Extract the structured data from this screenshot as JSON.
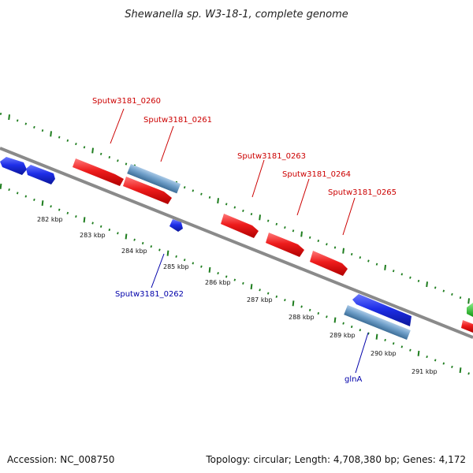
{
  "title": "Shewanella sp. W3-18-1, complete genome",
  "footer": {
    "accession": "Accession: NC_008750",
    "summary": "Topology: circular; Length: 4,708,380 bp; Genes: 4,172"
  },
  "colors": {
    "backbone": "#8a8a8a",
    "tick": "#1e7d1e",
    "forward_gene": "#ee2222",
    "reverse_gene": "#1f2fe6",
    "rna_gene": "#6f9fc9",
    "other_gene": "#22bb22",
    "forward_label": "#cc0000",
    "reverse_label": "#0000aa"
  },
  "ticks": {
    "labels": [
      "282 kbp",
      "283 kbp",
      "284 kbp",
      "285 kbp",
      "286 kbp",
      "287 kbp",
      "288 kbp",
      "289 kbp",
      "290 kbp",
      "291 kbp"
    ]
  },
  "genes": {
    "forward": [
      {
        "label": "Sputw3181_0260"
      },
      {
        "label": "Sputw3181_0261"
      },
      {
        "label": "Sputw3181_0263"
      },
      {
        "label": "Sputw3181_0264"
      },
      {
        "label": "Sputw3181_0265"
      }
    ],
    "reverse": [
      {
        "label": "Sputw3181_0262"
      },
      {
        "label": "glnA"
      }
    ]
  }
}
